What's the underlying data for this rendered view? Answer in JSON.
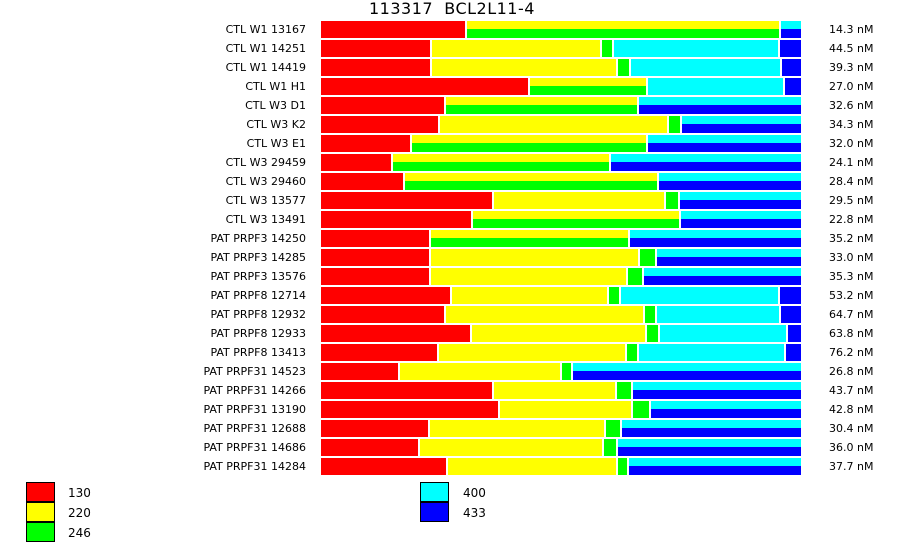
{
  "chart_data": {
    "type": "bar",
    "orientation": "horizontal-stacked-100",
    "title": "113317  BCL2L11-4",
    "colors": {
      "130": "#ff0000",
      "220": "#ffff00",
      "246": "#00ff00",
      "400": "#00ffff",
      "433": "#0000ff"
    },
    "legend": [
      "130",
      "220",
      "246",
      "400",
      "433"
    ],
    "rows": [
      {
        "label": "CTL W1 13167",
        "value": "14.3 nM",
        "segments": [
          {
            "c": "130",
            "v": 30.4
          },
          {
            "c": [
              "220",
              "246"
            ],
            "v": 65.4
          },
          {
            "c": [
              "400",
              "433"
            ],
            "v": 4.2
          }
        ]
      },
      {
        "label": "CTL W1 14251",
        "value": "44.5 nM",
        "segments": [
          {
            "c": "130",
            "v": 23.1
          },
          {
            "c": "220",
            "v": 35.4
          },
          {
            "c": "246",
            "v": 2.5
          },
          {
            "c": "400",
            "v": 34.6
          },
          {
            "c": "433",
            "v": 4.4
          }
        ]
      },
      {
        "label": "CTL W1 14419",
        "value": "39.3 nM",
        "segments": [
          {
            "c": "130",
            "v": 23.1
          },
          {
            "c": "220",
            "v": 38.8
          },
          {
            "c": "246",
            "v": 2.7
          },
          {
            "c": "400",
            "v": 31.5
          },
          {
            "c": "433",
            "v": 3.9
          }
        ]
      },
      {
        "label": "CTL W1 H1",
        "value": "27.0 nM",
        "segments": [
          {
            "c": "130",
            "v": 43.5
          },
          {
            "c": [
              "220",
              "246"
            ],
            "v": 24.6
          },
          {
            "c": "400",
            "v": 28.5
          },
          {
            "c": "433",
            "v": 3.4
          }
        ]
      },
      {
        "label": "CTL W3 D1",
        "value": "32.6 nM",
        "segments": [
          {
            "c": "130",
            "v": 26.0
          },
          {
            "c": [
              "220",
              "246"
            ],
            "v": 40.2
          },
          {
            "c": [
              "400",
              "433"
            ],
            "v": 33.8
          }
        ]
      },
      {
        "label": "CTL W3 K2",
        "value": "34.3 nM",
        "segments": [
          {
            "c": "130",
            "v": 24.8
          },
          {
            "c": "220",
            "v": 47.7
          },
          {
            "c": "246",
            "v": 2.7
          },
          {
            "c": [
              "400",
              "433"
            ],
            "v": 24.8
          }
        ]
      },
      {
        "label": "CTL W3 E1",
        "value": "32.0 nM",
        "segments": [
          {
            "c": "130",
            "v": 19.0
          },
          {
            "c": [
              "220",
              "246"
            ],
            "v": 49.2
          },
          {
            "c": [
              "400",
              "433"
            ],
            "v": 31.8
          }
        ]
      },
      {
        "label": "CTL W3 29459",
        "value": "24.1 nM",
        "segments": [
          {
            "c": "130",
            "v": 15.0
          },
          {
            "c": [
              "220",
              "246"
            ],
            "v": 45.4
          },
          {
            "c": [
              "400",
              "433"
            ],
            "v": 39.6
          }
        ]
      },
      {
        "label": "CTL W3 29460",
        "value": "28.4 nM",
        "segments": [
          {
            "c": "130",
            "v": 17.5
          },
          {
            "c": [
              "220",
              "246"
            ],
            "v": 52.9
          },
          {
            "c": [
              "400",
              "433"
            ],
            "v": 29.6
          }
        ]
      },
      {
        "label": "CTL W3 13577",
        "value": "29.5 nM",
        "segments": [
          {
            "c": "130",
            "v": 36.0
          },
          {
            "c": "220",
            "v": 35.8
          },
          {
            "c": "246",
            "v": 2.9
          },
          {
            "c": [
              "400",
              "433"
            ],
            "v": 25.3
          }
        ]
      },
      {
        "label": "CTL W3 13491",
        "value": "22.8 nM",
        "segments": [
          {
            "c": "130",
            "v": 31.7
          },
          {
            "c": [
              "220",
              "246"
            ],
            "v": 43.3
          },
          {
            "c": [
              "400",
              "433"
            ],
            "v": 25.0
          }
        ]
      },
      {
        "label": "PAT PRPF3 14250",
        "value": "35.2 nM",
        "segments": [
          {
            "c": "130",
            "v": 22.9
          },
          {
            "c": [
              "220",
              "246"
            ],
            "v": 41.5
          },
          {
            "c": [
              "400",
              "433"
            ],
            "v": 35.6
          }
        ]
      },
      {
        "label": "PAT PRPF3 14285",
        "value": "33.0 nM",
        "segments": [
          {
            "c": "130",
            "v": 22.9
          },
          {
            "c": "220",
            "v": 43.5
          },
          {
            "c": "246",
            "v": 3.5
          },
          {
            "c": [
              "400",
              "433"
            ],
            "v": 30.1
          }
        ]
      },
      {
        "label": "PAT PRPF3 13576",
        "value": "35.3 nM",
        "segments": [
          {
            "c": "130",
            "v": 22.9
          },
          {
            "c": "220",
            "v": 41.0
          },
          {
            "c": "246",
            "v": 3.3
          },
          {
            "c": [
              "400",
              "433"
            ],
            "v": 32.8
          }
        ]
      },
      {
        "label": "PAT PRPF8 12714",
        "value": "53.2 nM",
        "segments": [
          {
            "c": "130",
            "v": 27.3
          },
          {
            "c": "220",
            "v": 32.7
          },
          {
            "c": "246",
            "v": 2.5
          },
          {
            "c": "400",
            "v": 33.1
          },
          {
            "c": "433",
            "v": 4.4
          }
        ]
      },
      {
        "label": "PAT PRPF8 12932",
        "value": "64.7 nM",
        "segments": [
          {
            "c": "130",
            "v": 26.0
          },
          {
            "c": "220",
            "v": 41.5
          },
          {
            "c": "246",
            "v": 2.5
          },
          {
            "c": "400",
            "v": 25.8
          },
          {
            "c": "433",
            "v": 4.2
          }
        ]
      },
      {
        "label": "PAT PRPF8 12933",
        "value": "63.8 nM",
        "segments": [
          {
            "c": "130",
            "v": 31.5
          },
          {
            "c": "220",
            "v": 36.5
          },
          {
            "c": "246",
            "v": 2.7
          },
          {
            "c": "400",
            "v": 26.5
          },
          {
            "c": "433",
            "v": 2.8
          }
        ]
      },
      {
        "label": "PAT PRPF8 13413",
        "value": "76.2 nM",
        "segments": [
          {
            "c": "130",
            "v": 24.6
          },
          {
            "c": "220",
            "v": 39.2
          },
          {
            "c": "246",
            "v": 2.5
          },
          {
            "c": "400",
            "v": 30.6
          },
          {
            "c": "433",
            "v": 3.1
          }
        ]
      },
      {
        "label": "PAT PRPF31 14523",
        "value": "26.8 nM",
        "segments": [
          {
            "c": "130",
            "v": 16.5
          },
          {
            "c": "220",
            "v": 33.7
          },
          {
            "c": "246",
            "v": 2.3
          },
          {
            "c": [
              "400",
              "433"
            ],
            "v": 47.5
          }
        ]
      },
      {
        "label": "PAT PRPF31 14266",
        "value": "43.7 nM",
        "segments": [
          {
            "c": "130",
            "v": 36.0
          },
          {
            "c": "220",
            "v": 25.6
          },
          {
            "c": "246",
            "v": 3.3
          },
          {
            "c": [
              "400",
              "433"
            ],
            "v": 35.1
          }
        ]
      },
      {
        "label": "PAT PRPF31 13190",
        "value": "42.8 nM",
        "segments": [
          {
            "c": "130",
            "v": 37.3
          },
          {
            "c": "220",
            "v": 27.7
          },
          {
            "c": "246",
            "v": 3.8
          },
          {
            "c": [
              "400",
              "433"
            ],
            "v": 31.2
          }
        ]
      },
      {
        "label": "PAT PRPF31 12688",
        "value": "30.4 nM",
        "segments": [
          {
            "c": "130",
            "v": 22.7
          },
          {
            "c": "220",
            "v": 36.7
          },
          {
            "c": "246",
            "v": 3.3
          },
          {
            "c": [
              "400",
              "433"
            ],
            "v": 37.3
          }
        ]
      },
      {
        "label": "PAT PRPF31 14686",
        "value": "36.0 nM",
        "segments": [
          {
            "c": "130",
            "v": 20.6
          },
          {
            "c": "220",
            "v": 38.3
          },
          {
            "c": "246",
            "v": 2.9
          },
          {
            "c": [
              "400",
              "433"
            ],
            "v": 38.2
          }
        ]
      },
      {
        "label": "PAT PRPF31 14284",
        "value": "37.7 nM",
        "segments": [
          {
            "c": "130",
            "v": 26.5
          },
          {
            "c": "220",
            "v": 35.4
          },
          {
            "c": "246",
            "v": 2.3
          },
          {
            "c": [
              "400",
              "433"
            ],
            "v": 35.8
          }
        ]
      }
    ]
  }
}
